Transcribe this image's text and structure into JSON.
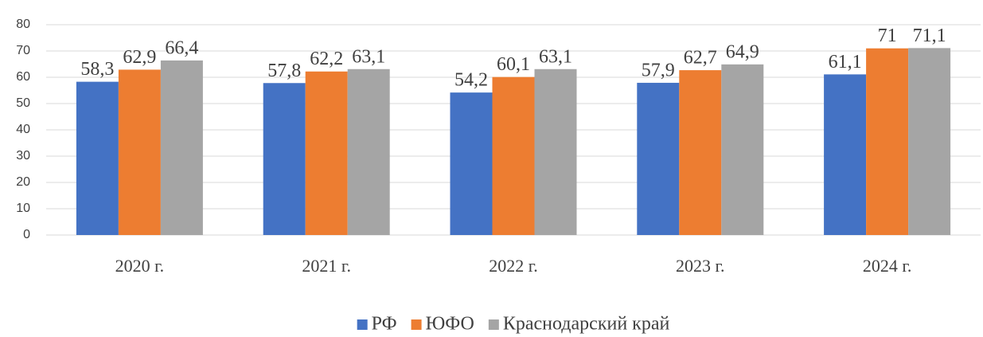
{
  "chart_data": {
    "type": "bar",
    "categories": [
      "2020 г.",
      "2021 г.",
      "2022 г.",
      "2023 г.",
      "2024 г."
    ],
    "series": [
      {
        "name": "РФ",
        "color": "#4472c4",
        "values": [
          58.3,
          57.8,
          54.2,
          57.9,
          61.1
        ],
        "value_labels": [
          "58,3",
          "57,8",
          "54,2",
          "57,9",
          "61,1"
        ]
      },
      {
        "name": "ЮФО",
        "color": "#ed7d31",
        "values": [
          62.9,
          62.2,
          60.1,
          62.7,
          71
        ],
        "value_labels": [
          "62,9",
          "62,2",
          "60,1",
          "62,7",
          "71"
        ]
      },
      {
        "name": "Краснодарский край",
        "color": "#a5a5a5",
        "values": [
          66.4,
          63.1,
          63.1,
          64.9,
          71.1
        ],
        "value_labels": [
          "66,4",
          "63,1",
          "63,1",
          "64,9",
          "71,1"
        ]
      }
    ],
    "ylim": [
      0,
      80
    ],
    "yticks": [
      0,
      10,
      20,
      30,
      40,
      50,
      60,
      70,
      80
    ],
    "grid": true,
    "legend": "bottom"
  }
}
